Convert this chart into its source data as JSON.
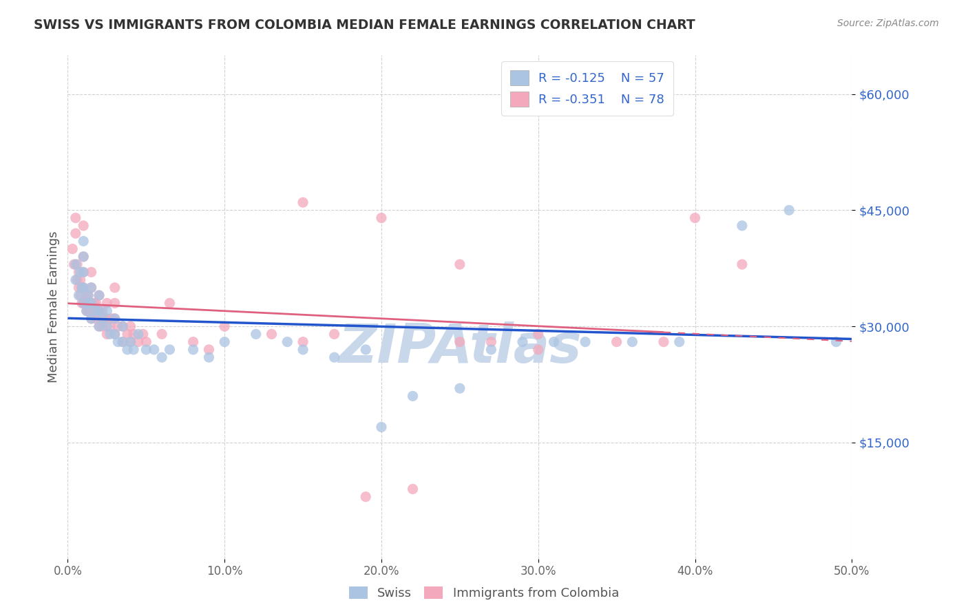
{
  "title": "SWISS VS IMMIGRANTS FROM COLOMBIA MEDIAN FEMALE EARNINGS CORRELATION CHART",
  "source": "Source: ZipAtlas.com",
  "ylabel": "Median Female Earnings",
  "x_min": 0.0,
  "x_max": 0.5,
  "y_min": 0,
  "y_max": 65000,
  "y_ticks": [
    15000,
    30000,
    45000,
    60000
  ],
  "y_tick_labels": [
    "$15,000",
    "$30,000",
    "$45,000",
    "$60,000"
  ],
  "x_ticks": [
    0.0,
    0.1,
    0.2,
    0.3,
    0.4,
    0.5
  ],
  "x_tick_labels": [
    "0.0%",
    "10.0%",
    "20.0%",
    "30.0%",
    "40.0%",
    "50.0%"
  ],
  "swiss_color": "#aac4e2",
  "colombia_color": "#f4a8bc",
  "swiss_line_color": "#2255cc",
  "colombia_line_color": "#e06080",
  "swiss_R": -0.125,
  "swiss_N": 57,
  "colombia_R": -0.351,
  "colombia_N": 78,
  "legend_label_swiss": "Swiss",
  "legend_label_colombia": "Immigrants from Colombia",
  "watermark": "ZIPAtlas",
  "watermark_color": "#c8d8ea",
  "background_color": "#ffffff",
  "grid_color": "#cccccc",
  "title_color": "#333333",
  "tick_label_color": "#3366cc",
  "swiss_scatter_x": [
    0.005,
    0.005,
    0.007,
    0.008,
    0.009,
    0.01,
    0.01,
    0.01,
    0.01,
    0.01,
    0.012,
    0.013,
    0.014,
    0.015,
    0.015,
    0.015,
    0.018,
    0.02,
    0.02,
    0.02,
    0.022,
    0.025,
    0.025,
    0.027,
    0.03,
    0.03,
    0.032,
    0.035,
    0.035,
    0.038,
    0.04,
    0.042,
    0.045,
    0.05,
    0.055,
    0.06,
    0.065,
    0.08,
    0.09,
    0.1,
    0.12,
    0.14,
    0.15,
    0.17,
    0.19,
    0.2,
    0.22,
    0.25,
    0.27,
    0.29,
    0.31,
    0.33,
    0.36,
    0.39,
    0.43,
    0.46,
    0.49
  ],
  "swiss_scatter_y": [
    36000,
    38000,
    34000,
    37000,
    35000,
    33000,
    35000,
    37000,
    39000,
    41000,
    32000,
    34000,
    33000,
    31000,
    33000,
    35000,
    32000,
    30000,
    32000,
    34000,
    31000,
    30000,
    32000,
    29000,
    29000,
    31000,
    28000,
    28000,
    30000,
    27000,
    28000,
    27000,
    29000,
    27000,
    27000,
    26000,
    27000,
    27000,
    26000,
    28000,
    29000,
    28000,
    27000,
    26000,
    27000,
    17000,
    21000,
    22000,
    27000,
    28000,
    28000,
    28000,
    28000,
    28000,
    43000,
    45000,
    28000
  ],
  "colombia_scatter_x": [
    0.003,
    0.004,
    0.005,
    0.005,
    0.006,
    0.006,
    0.007,
    0.007,
    0.008,
    0.008,
    0.009,
    0.009,
    0.01,
    0.01,
    0.01,
    0.01,
    0.01,
    0.012,
    0.012,
    0.013,
    0.013,
    0.014,
    0.015,
    0.015,
    0.015,
    0.015,
    0.016,
    0.017,
    0.018,
    0.018,
    0.019,
    0.02,
    0.02,
    0.02,
    0.021,
    0.022,
    0.022,
    0.023,
    0.025,
    0.025,
    0.025,
    0.027,
    0.028,
    0.03,
    0.03,
    0.03,
    0.03,
    0.032,
    0.035,
    0.035,
    0.038,
    0.04,
    0.04,
    0.042,
    0.045,
    0.048,
    0.05,
    0.06,
    0.065,
    0.08,
    0.09,
    0.1,
    0.13,
    0.15,
    0.17,
    0.19,
    0.22,
    0.25,
    0.27,
    0.3,
    0.35,
    0.38,
    0.4,
    0.43,
    0.15,
    0.2,
    0.25,
    0.3
  ],
  "colombia_scatter_y": [
    40000,
    38000,
    42000,
    44000,
    36000,
    38000,
    35000,
    37000,
    34000,
    36000,
    33000,
    35000,
    33000,
    35000,
    37000,
    39000,
    43000,
    32000,
    34000,
    32000,
    34000,
    33000,
    31000,
    33000,
    35000,
    37000,
    32000,
    33000,
    31000,
    33000,
    32000,
    30000,
    32000,
    34000,
    31000,
    30000,
    32000,
    31000,
    29000,
    31000,
    33000,
    30000,
    31000,
    29000,
    31000,
    33000,
    35000,
    30000,
    28000,
    30000,
    29000,
    28000,
    30000,
    29000,
    28000,
    29000,
    28000,
    29000,
    33000,
    28000,
    27000,
    30000,
    29000,
    28000,
    29000,
    8000,
    9000,
    28000,
    28000,
    27000,
    28000,
    28000,
    44000,
    38000,
    46000,
    44000,
    38000,
    29000
  ]
}
